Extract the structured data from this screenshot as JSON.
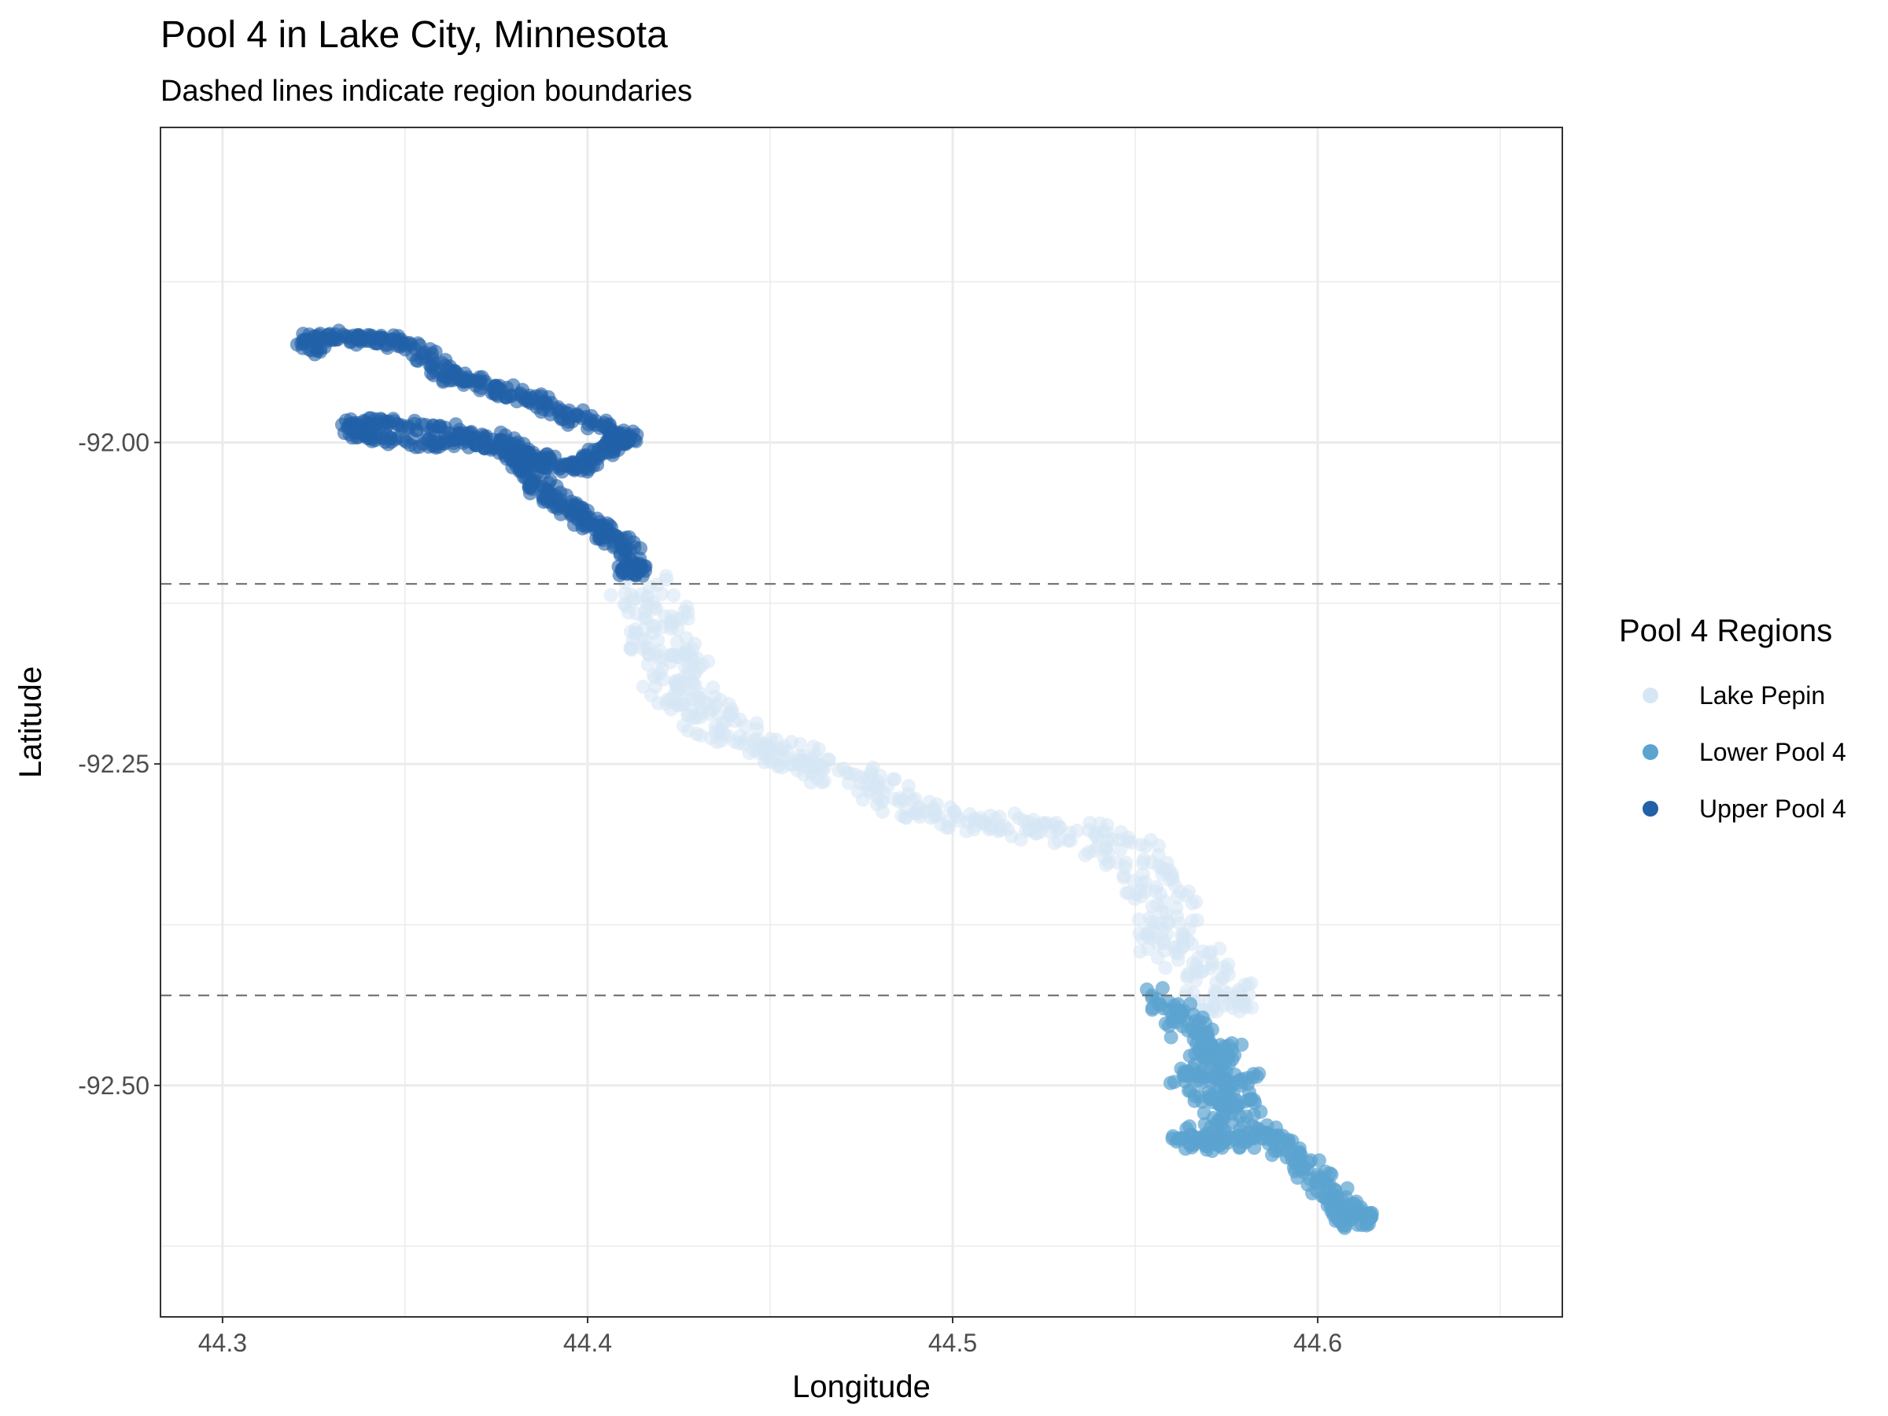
{
  "chart_data": {
    "type": "scatter",
    "title": "Pool 4 in Lake City, Minnesota",
    "subtitle": "Dashed lines indicate region boundaries",
    "xlabel": "Longitude",
    "ylabel": "Latitude",
    "xlim": [
      44.283,
      44.667
    ],
    "ylim": [
      -92.68,
      -91.755
    ],
    "x_ticks": [
      44.3,
      44.4,
      44.5,
      44.6
    ],
    "x_tick_labels": [
      "44.3",
      "44.4",
      "44.5",
      "44.6"
    ],
    "y_ticks": [
      -92.0,
      -92.25,
      -92.5
    ],
    "y_tick_labels": [
      "-92.00",
      "-92.25",
      "-92.50"
    ],
    "grid": true,
    "legend": {
      "title": "Pool 4 Regions",
      "position": "right",
      "entries": [
        {
          "label": "Lake Pepin",
          "color": "#d6e6f4"
        },
        {
          "label": "Lower Pool 4",
          "color": "#5ba3d0"
        },
        {
          "label": "Upper Pool 4",
          "color": "#2260a8"
        }
      ]
    },
    "region_boundaries_y": [
      -92.11,
      -92.43
    ],
    "series": [
      {
        "name": "Upper Pool 4",
        "color": "#2260a8",
        "opacity": 0.6,
        "spread": 0.004,
        "points": [
          [
            44.323,
            -91.928
          ],
          [
            44.327,
            -91.915
          ],
          [
            44.335,
            -91.92
          ],
          [
            44.345,
            -91.92
          ],
          [
            44.355,
            -91.93
          ],
          [
            44.362,
            -91.948
          ],
          [
            44.37,
            -91.955
          ],
          [
            44.38,
            -91.962
          ],
          [
            44.39,
            -91.972
          ],
          [
            44.4,
            -91.985
          ],
          [
            44.41,
            -91.995
          ],
          [
            44.409,
            -92.0
          ],
          [
            44.402,
            -92.01
          ],
          [
            44.398,
            -92.02
          ],
          [
            44.39,
            -92.015
          ],
          [
            44.382,
            -92.01
          ],
          [
            44.385,
            -92.02
          ],
          [
            44.376,
            -92.003
          ],
          [
            44.368,
            -92.0
          ],
          [
            44.355,
            -92.0
          ],
          [
            44.34,
            -91.995
          ],
          [
            44.335,
            -91.985
          ],
          [
            44.345,
            -91.985
          ],
          [
            44.362,
            -91.99
          ],
          [
            44.38,
            -92.0
          ],
          [
            44.385,
            -92.025
          ],
          [
            44.388,
            -92.04
          ],
          [
            44.395,
            -92.05
          ],
          [
            44.4,
            -92.06
          ],
          [
            44.405,
            -92.07
          ],
          [
            44.41,
            -92.08
          ],
          [
            44.412,
            -92.1
          ]
        ]
      },
      {
        "name": "Lake Pepin",
        "color": "#d6e6f4",
        "opacity": 0.55,
        "spread": 0.009,
        "points": [
          [
            44.415,
            -92.11
          ],
          [
            44.42,
            -92.13
          ],
          [
            44.418,
            -92.155
          ],
          [
            44.425,
            -92.165
          ],
          [
            44.422,
            -92.19
          ],
          [
            44.43,
            -92.2
          ],
          [
            44.435,
            -92.22
          ],
          [
            44.445,
            -92.235
          ],
          [
            44.455,
            -92.245
          ],
          [
            44.465,
            -92.255
          ],
          [
            44.478,
            -92.265
          ],
          [
            44.49,
            -92.285
          ],
          [
            44.505,
            -92.295
          ],
          [
            44.52,
            -92.3
          ],
          [
            44.535,
            -92.305
          ],
          [
            44.548,
            -92.32
          ],
          [
            44.555,
            -92.345
          ],
          [
            44.56,
            -92.37
          ],
          [
            44.56,
            -92.39
          ],
          [
            44.568,
            -92.41
          ],
          [
            44.575,
            -92.435
          ]
        ]
      },
      {
        "name": "Lower Pool 4",
        "color": "#5ba3d0",
        "opacity": 0.7,
        "spread": 0.006,
        "points": [
          [
            44.558,
            -92.43
          ],
          [
            44.562,
            -92.45
          ],
          [
            44.568,
            -92.47
          ],
          [
            44.575,
            -92.475
          ],
          [
            44.565,
            -92.495
          ],
          [
            44.58,
            -92.495
          ],
          [
            44.57,
            -92.51
          ],
          [
            44.58,
            -92.515
          ],
          [
            44.57,
            -92.535
          ],
          [
            44.565,
            -92.545
          ],
          [
            44.575,
            -92.545
          ],
          [
            44.585,
            -92.535
          ],
          [
            44.59,
            -92.55
          ],
          [
            44.6,
            -92.57
          ],
          [
            44.605,
            -92.59
          ],
          [
            44.61,
            -92.605
          ]
        ]
      }
    ]
  }
}
